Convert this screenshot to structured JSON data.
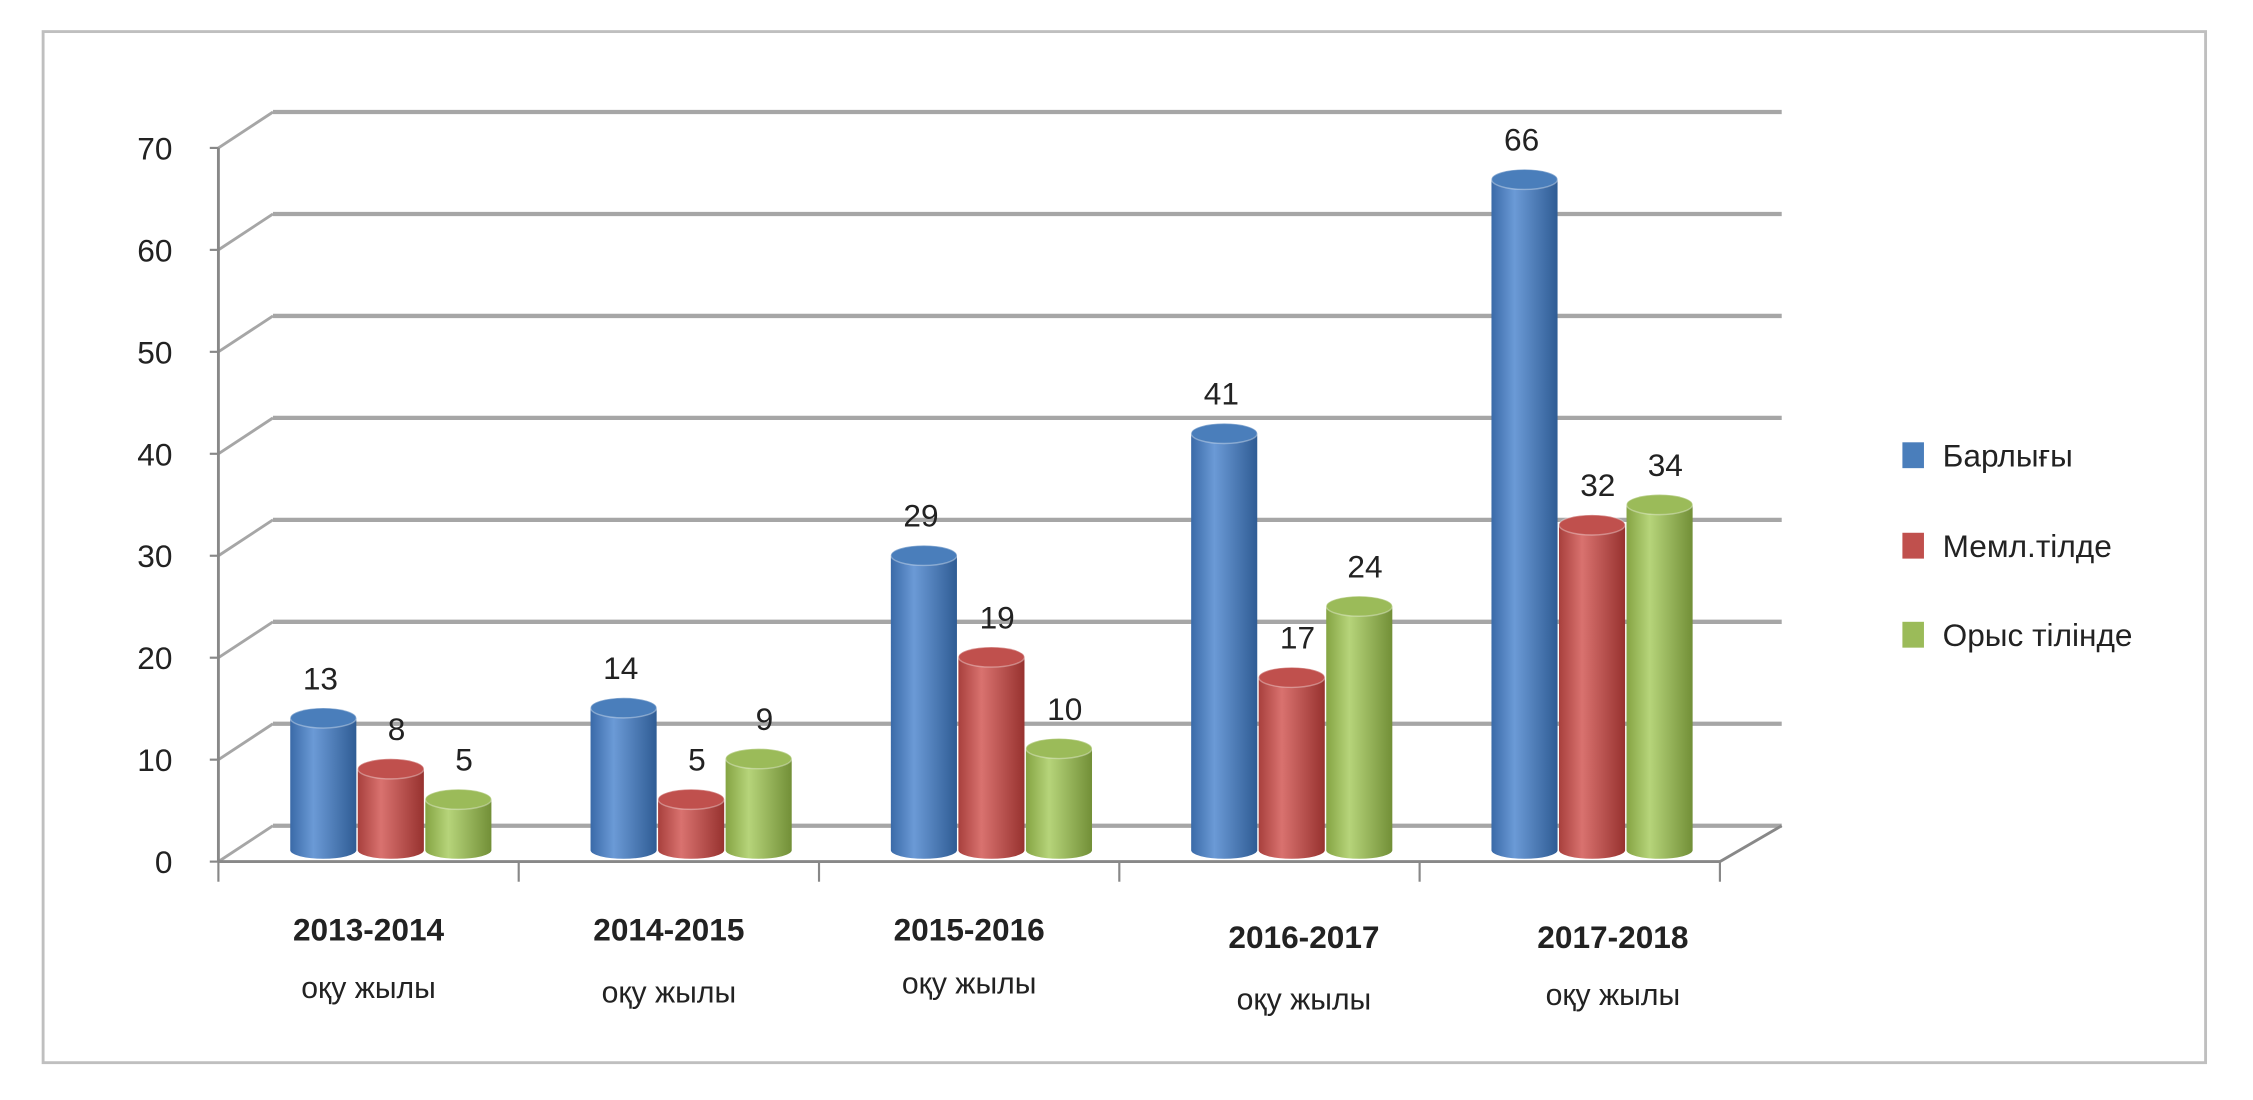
{
  "chart_data": {
    "type": "bar",
    "style": "3d-cylinder",
    "title": "",
    "categories": [
      "2013-2014",
      "2014-2015",
      "2015-2016",
      "2016-2017",
      "2017-2018"
    ],
    "category_sublabel": "оқу жылы",
    "series": [
      {
        "name": "Барлығы",
        "color": "#4a7ebb",
        "values": [
          13,
          14,
          29,
          41,
          66
        ]
      },
      {
        "name": "Мемл.тілде",
        "color": "#c0504d",
        "values": [
          8,
          5,
          19,
          17,
          32
        ]
      },
      {
        "name": "Орыс тілінде",
        "color": "#9bbb59",
        "values": [
          5,
          9,
          10,
          24,
          34
        ]
      }
    ],
    "yticks": [
      "0",
      "10",
      "20",
      "30",
      "40",
      "50",
      "60",
      "70"
    ],
    "ylim": [
      0,
      70
    ],
    "grid": true,
    "legend": "right"
  }
}
